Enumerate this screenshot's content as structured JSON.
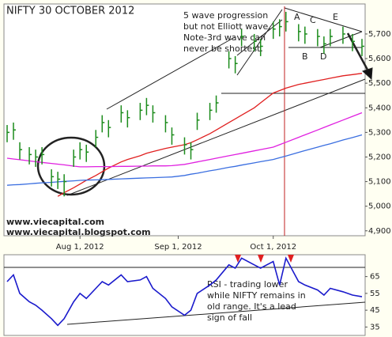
{
  "chart_data": [
    {
      "type": "ohlc",
      "title": "NIFTY 30 OCTOBER 2012",
      "annotations": [
        "5 wave progression",
        "but not Elliott wave.",
        "Note-3rd wave can",
        "never be shortest."
      ],
      "wave_labels": [
        "A",
        "B",
        "C",
        "D",
        "E"
      ],
      "footer_texts": [
        "www.viecapital.com",
        "www.viecapital.blogspot.com"
      ],
      "bar_color": "#1c8c1c",
      "x": [
        "2012-07-09",
        "2012-07-11",
        "2012-07-13",
        "2012-07-16",
        "2012-07-18",
        "2012-07-20",
        "2012-07-23",
        "2012-07-25",
        "2012-07-27",
        "2012-07-30",
        "2012-08-01",
        "2012-08-03",
        "2012-08-06",
        "2012-08-08",
        "2012-08-10",
        "2012-08-14",
        "2012-08-16",
        "2012-08-20",
        "2012-08-22",
        "2012-08-24",
        "2012-08-28",
        "2012-08-30",
        "2012-09-03",
        "2012-09-05",
        "2012-09-07",
        "2012-09-11",
        "2012-09-13",
        "2012-09-17",
        "2012-09-19",
        "2012-09-21",
        "2012-09-25",
        "2012-09-27",
        "2012-10-01",
        "2012-10-03",
        "2012-10-05",
        "2012-10-09",
        "2012-10-11",
        "2012-10-15",
        "2012-10-17",
        "2012-10-19",
        "2012-10-23",
        "2012-10-26",
        "2012-10-29"
      ],
      "high": [
        5330,
        5340,
        5260,
        5240,
        5230,
        5240,
        5150,
        5140,
        5130,
        5230,
        5260,
        5250,
        5310,
        5370,
        5350,
        5410,
        5390,
        5420,
        5440,
        5410,
        5370,
        5320,
        5280,
        5260,
        5380,
        5420,
        5450,
        5630,
        5610,
        5720,
        5700,
        5680,
        5750,
        5760,
        5790,
        5740,
        5730,
        5720,
        5690,
        5720,
        5730,
        5700,
        5680
      ],
      "low": [
        5260,
        5270,
        5190,
        5170,
        5160,
        5170,
        5080,
        5070,
        5040,
        5160,
        5190,
        5180,
        5240,
        5300,
        5280,
        5340,
        5320,
        5350,
        5370,
        5340,
        5300,
        5250,
        5210,
        5190,
        5310,
        5350,
        5380,
        5560,
        5540,
        5650,
        5630,
        5610,
        5680,
        5690,
        5710,
        5670,
        5660,
        5650,
        5620,
        5650,
        5660,
        5630,
        5610
      ],
      "close": [
        5300,
        5310,
        5230,
        5210,
        5200,
        5210,
        5120,
        5110,
        5100,
        5200,
        5230,
        5220,
        5280,
        5340,
        5320,
        5380,
        5360,
        5390,
        5410,
        5380,
        5340,
        5290,
        5250,
        5230,
        5350,
        5390,
        5420,
        5600,
        5580,
        5690,
        5670,
        5650,
        5720,
        5730,
        5750,
        5710,
        5700,
        5690,
        5660,
        5690,
        5700,
        5670,
        5650
      ],
      "moving_averages": [
        {
          "color": "#e02020",
          "values": [
            null,
            null,
            null,
            null,
            null,
            null,
            null,
            5040,
            5055,
            5075,
            5090,
            5105,
            5125,
            5140,
            5155,
            5180,
            5190,
            5205,
            5215,
            5222,
            5235,
            5240,
            5250,
            5258,
            5270,
            5295,
            5310,
            5340,
            5355,
            5370,
            5400,
            5420,
            5460,
            5470,
            5480,
            5495,
            5500,
            5510,
            5515,
            5520,
            5530,
            5535,
            5540
          ]
        },
        {
          "color": "#e020e0",
          "values": [
            5195,
            5192,
            5189,
            5184,
            5181,
            5178,
            5174,
            5171,
            5168,
            5163,
            5160,
            5160,
            5161,
            5161,
            5161,
            5162,
            5162,
            5163,
            5163,
            5164,
            5164,
            5165,
            5170,
            5175,
            5180,
            5190,
            5195,
            5205,
            5210,
            5215,
            5225,
            5230,
            5240,
            5250,
            5260,
            5280,
            5290,
            5310,
            5320,
            5330,
            5350,
            5365,
            5380
          ]
        },
        {
          "color": "#3a6ee0",
          "values": [
            5085,
            5087,
            5088,
            5091,
            5093,
            5095,
            5097,
            5099,
            5101,
            5103,
            5105,
            5106,
            5107,
            5108,
            5109,
            5111,
            5112,
            5114,
            5115,
            5116,
            5118,
            5119,
            5125,
            5130,
            5134,
            5144,
            5148,
            5158,
            5162,
            5167,
            5176,
            5181,
            5190,
            5197,
            5204,
            5219,
            5226,
            5240,
            5247,
            5254,
            5269,
            5279,
            5290
          ]
        }
      ],
      "xlim": [
        "2012-07-08",
        "2012-10-30"
      ],
      "xticks": [
        {
          "value": "2012-08-01",
          "label": "Aug 1, 2012"
        },
        {
          "value": "2012-09-01",
          "label": "Sep 1, 2012"
        },
        {
          "value": "2012-10-01",
          "label": "Oct 1, 2012"
        }
      ],
      "ylim": [
        4880,
        5822
      ],
      "yticks": [
        {
          "value": 4900,
          "label": "4,900"
        },
        {
          "value": 5000,
          "label": "5,000"
        },
        {
          "value": 5100,
          "label": "5,100"
        },
        {
          "value": 5200,
          "label": "5,200"
        },
        {
          "value": 5300,
          "label": "5,300"
        },
        {
          "value": 5400,
          "label": "5,400"
        },
        {
          "value": 5500,
          "label": "5,500"
        },
        {
          "value": 5600,
          "label": "5,600"
        },
        {
          "value": 5700,
          "label": "5,700"
        }
      ]
    },
    {
      "type": "line",
      "color": "#1a1acc",
      "annotations": [
        "RSI - trading lower",
        "while NIFTY remains in",
        "old range. It's a lead",
        "sign of fall"
      ],
      "values": [
        62,
        66,
        55,
        50,
        48,
        45,
        40,
        36,
        40,
        50,
        55,
        52,
        58,
        62,
        60,
        66,
        62,
        63,
        65,
        58,
        52,
        47,
        42,
        45,
        55,
        60,
        63,
        72,
        70,
        76,
        72,
        70,
        74,
        60,
        76,
        62,
        60,
        57,
        54,
        58,
        56,
        54,
        53
      ],
      "ylim": [
        30,
        78
      ],
      "yticks": [
        35,
        45,
        55,
        65
      ]
    }
  ]
}
